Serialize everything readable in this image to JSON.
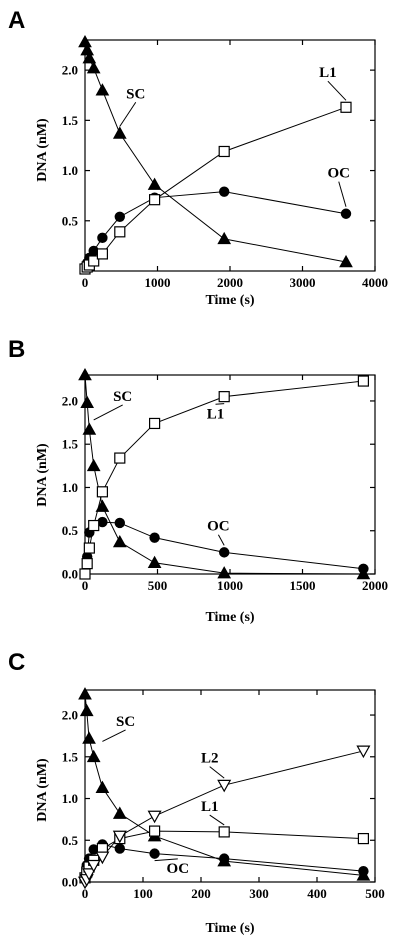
{
  "chart_data": [
    {
      "type": "line",
      "panel": "A",
      "xlabel": "Time (s)",
      "ylabel": "DNA (nM)",
      "xlim": [
        0,
        4000
      ],
      "ylim": [
        0,
        2.3
      ],
      "xticks": [
        0,
        1000,
        2000,
        3000,
        4000
      ],
      "yticks": [
        0.5,
        1.0,
        1.5,
        2.0
      ],
      "xtick_labels": [
        "0",
        "1000",
        "2000",
        "3000",
        "4000"
      ],
      "ytick_labels": [
        "0.5",
        "1.0",
        "1.5",
        "2.0"
      ],
      "grid": false,
      "series": [
        {
          "name": "SC",
          "marker": "triangle-filled",
          "x": [
            0,
            30,
            60,
            120,
            240,
            480,
            960,
            1920,
            3600
          ],
          "y": [
            2.28,
            2.2,
            2.12,
            2.02,
            1.8,
            1.37,
            0.86,
            0.32,
            0.09
          ]
        },
        {
          "name": "OC",
          "marker": "circle-filled",
          "x": [
            0,
            30,
            60,
            120,
            240,
            480,
            960,
            1920,
            3600
          ],
          "y": [
            0.04,
            0.08,
            0.13,
            0.2,
            0.33,
            0.54,
            0.73,
            0.79,
            0.57
          ]
        },
        {
          "name": "L1",
          "marker": "square-open",
          "x": [
            0,
            30,
            60,
            120,
            240,
            480,
            960,
            1920,
            3600
          ],
          "y": [
            0.02,
            0.04,
            0.06,
            0.1,
            0.17,
            0.39,
            0.71,
            1.19,
            1.63
          ]
        }
      ],
      "annotations": [
        {
          "text": "SC",
          "x": 700,
          "y": 1.72,
          "anchor_x": 480,
          "anchor_y": 1.37
        },
        {
          "text": "L1",
          "x": 3350,
          "y": 1.93,
          "anchor_x": 3600,
          "anchor_y": 1.63
        },
        {
          "text": "OC",
          "x": 3500,
          "y": 0.93,
          "anchor_x": 3600,
          "anchor_y": 0.57
        }
      ]
    },
    {
      "type": "line",
      "panel": "B",
      "xlabel": "Time (s)",
      "ylabel": "DNA (nM)",
      "xlim": [
        0,
        2000
      ],
      "ylim": [
        0,
        2.3
      ],
      "xticks": [
        0,
        500,
        1000,
        1500,
        2000
      ],
      "yticks": [
        0.0,
        0.5,
        1.0,
        1.5,
        2.0
      ],
      "xtick_labels": [
        "0",
        "500",
        "1000",
        "1500",
        "2000"
      ],
      "ytick_labels": [
        "0.0",
        "0.5",
        "1.0",
        "1.5",
        "2.0"
      ],
      "grid": false,
      "series": [
        {
          "name": "SC",
          "marker": "triangle-filled",
          "x": [
            0,
            15,
            30,
            60,
            120,
            240,
            480,
            960,
            1920
          ],
          "y": [
            2.3,
            1.98,
            1.67,
            1.25,
            0.78,
            0.37,
            0.13,
            0.01,
            0.0
          ]
        },
        {
          "name": "OC",
          "marker": "circle-filled",
          "x": [
            0,
            15,
            30,
            60,
            120,
            240,
            480,
            960,
            1920
          ],
          "y": [
            0.0,
            0.2,
            0.48,
            0.56,
            0.6,
            0.59,
            0.42,
            0.25,
            0.06
          ]
        },
        {
          "name": "L1",
          "marker": "square-open",
          "x": [
            0,
            15,
            30,
            60,
            120,
            240,
            480,
            960,
            1920
          ],
          "y": [
            0.0,
            0.12,
            0.3,
            0.56,
            0.95,
            1.34,
            1.74,
            2.05,
            2.23
          ]
        }
      ],
      "annotations": [
        {
          "text": "SC",
          "x": 260,
          "y": 2.0,
          "anchor_x": 60,
          "anchor_y": 1.7
        },
        {
          "text": "L1",
          "x": 900,
          "y": 1.8,
          "anchor_x": 960,
          "anchor_y": 2.05
        },
        {
          "text": "OC",
          "x": 920,
          "y": 0.5,
          "anchor_x": 960,
          "anchor_y": 0.25
        }
      ]
    },
    {
      "type": "line",
      "panel": "C",
      "xlabel": "Time (s)",
      "ylabel": "DNA (nM)",
      "xlim": [
        0,
        500
      ],
      "ylim": [
        0,
        2.3
      ],
      "xticks": [
        0,
        100,
        200,
        300,
        400,
        500
      ],
      "yticks": [
        0.0,
        0.5,
        1.0,
        1.5,
        2.0
      ],
      "xtick_labels": [
        "0",
        "100",
        "200",
        "300",
        "400",
        "500"
      ],
      "ytick_labels": [
        "0.0",
        "0.5",
        "1.0",
        "1.5",
        "2.0"
      ],
      "grid": false,
      "series": [
        {
          "name": "SC",
          "marker": "triangle-filled",
          "x": [
            0,
            3,
            7,
            15,
            30,
            60,
            120,
            240,
            480
          ],
          "y": [
            2.25,
            2.05,
            1.72,
            1.5,
            1.13,
            0.82,
            0.55,
            0.25,
            0.08
          ]
        },
        {
          "name": "OC",
          "marker": "circle-filled",
          "x": [
            0,
            3,
            7,
            15,
            30,
            60,
            120,
            240,
            480
          ],
          "y": [
            0.05,
            0.2,
            0.28,
            0.39,
            0.45,
            0.4,
            0.34,
            0.28,
            0.13
          ]
        },
        {
          "name": "L1",
          "marker": "square-open",
          "x": [
            0,
            3,
            7,
            15,
            30,
            60,
            120,
            240,
            480
          ],
          "y": [
            0.05,
            0.12,
            0.18,
            0.26,
            0.4,
            0.52,
            0.61,
            0.6,
            0.52
          ]
        },
        {
          "name": "L2",
          "marker": "triangle-down-open",
          "x": [
            0,
            3,
            7,
            15,
            30,
            60,
            120,
            240,
            480
          ],
          "y": [
            0.0,
            0.03,
            0.1,
            0.2,
            0.3,
            0.55,
            0.79,
            1.16,
            1.57
          ]
        }
      ],
      "annotations": [
        {
          "text": "SC",
          "x": 70,
          "y": 1.87,
          "anchor_x": 30,
          "anchor_y": 1.6
        },
        {
          "text": "L2",
          "x": 215,
          "y": 1.43,
          "anchor_x": 240,
          "anchor_y": 1.16
        },
        {
          "text": "L1",
          "x": 215,
          "y": 0.85,
          "anchor_x": 240,
          "anchor_y": 0.6
        },
        {
          "text": "OC",
          "x": 160,
          "y": 0.11,
          "anchor_x": 120,
          "anchor_y": 0.34
        }
      ]
    }
  ]
}
